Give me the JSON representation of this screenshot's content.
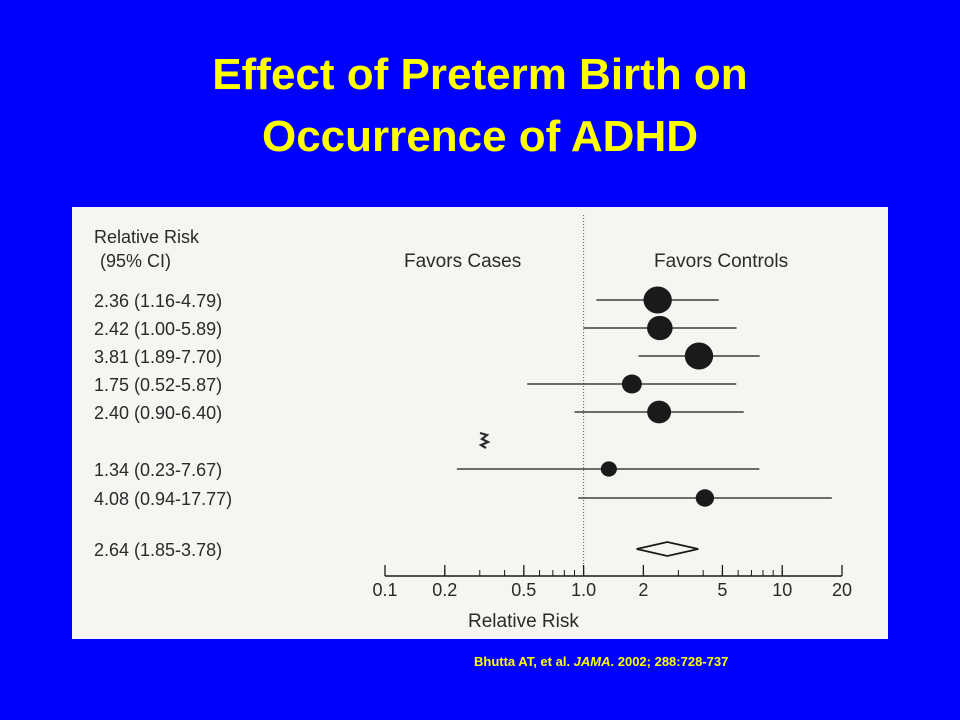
{
  "slide": {
    "title_line1": "Effect of Preterm Birth on",
    "title_line2": "Occurrence of ADHD",
    "citation_authors": "Bhutta AT, et al. ",
    "citation_journal": "JAMA",
    "citation_rest": ". 2002; 288:728-737"
  },
  "colors": {
    "background": "#0000ff",
    "title": "#ffff00",
    "panel": "#f5f5f2",
    "ink": "#1a1a1a"
  },
  "chart_data": {
    "type": "forest",
    "scale": "log",
    "column_header_line1": "Relative Risk",
    "column_header_line2": "(95% CI)",
    "favors_left": "Favors Cases",
    "favors_right": "Favors Controls",
    "xlabel": "Relative Risk",
    "xlim": [
      0.1,
      20
    ],
    "xticks": [
      0.1,
      0.2,
      0.5,
      1.0,
      2,
      5,
      10,
      20
    ],
    "xtick_labels": [
      "0.1",
      "0.2",
      "0.5",
      "1.0",
      "2",
      "5",
      "10",
      "20"
    ],
    "reference_line": 1.0,
    "studies": [
      {
        "label": "2.36 (1.16-4.79)",
        "rr": 2.36,
        "lo": 1.16,
        "hi": 4.79,
        "weight": 4
      },
      {
        "label": "2.42 (1.00-5.89)",
        "rr": 2.42,
        "lo": 1.0,
        "hi": 5.89,
        "weight": 3.5
      },
      {
        "label": "3.81 (1.89-7.70)",
        "rr": 3.81,
        "lo": 1.89,
        "hi": 7.7,
        "weight": 4
      },
      {
        "label": "1.75 (0.52-5.87)",
        "rr": 1.75,
        "lo": 0.52,
        "hi": 5.87,
        "weight": 2.5
      },
      {
        "label": "2.40 (0.90-6.40)",
        "rr": 2.4,
        "lo": 0.9,
        "hi": 6.4,
        "weight": 3.2
      },
      {
        "label": "1.34 (0.23-7.67)",
        "rr": 1.34,
        "lo": 0.23,
        "hi": 7.67,
        "weight": 1.8
      },
      {
        "label": "4.08 (0.94-17.77)",
        "rr": 4.08,
        "lo": 0.94,
        "hi": 17.77,
        "weight": 2.2
      }
    ],
    "pooled": {
      "label": "2.64 (1.85-3.78)",
      "rr": 2.64,
      "lo": 1.85,
      "hi": 3.78
    }
  }
}
